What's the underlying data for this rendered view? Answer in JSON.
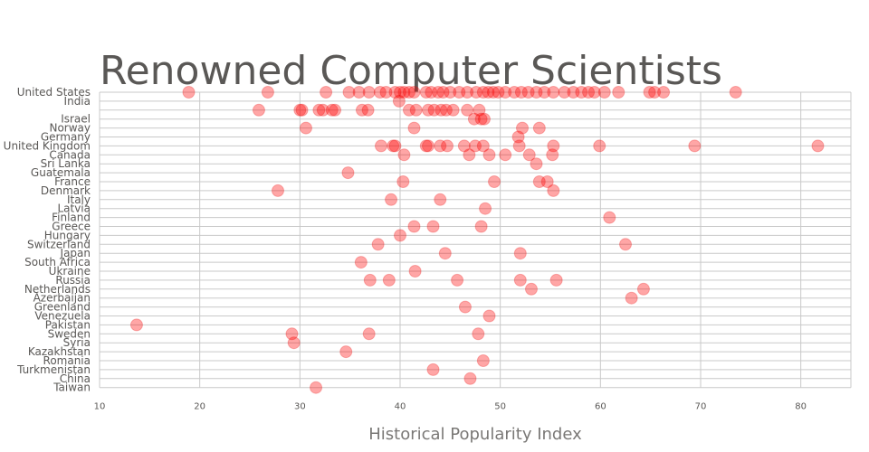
{
  "chart_data": {
    "type": "scatter",
    "title": "Renowned Computer Scientists",
    "xlabel": "Historical Popularity Index",
    "ylabel": "",
    "xlim": [
      10,
      85
    ],
    "xticks": [
      10,
      20,
      30,
      40,
      50,
      60,
      70,
      80
    ],
    "grid": true,
    "marker_color": "#ff0000",
    "categories": [
      "United States",
      "India",
      "",
      "Israel",
      "Norway",
      "Germany",
      "United Kingdom",
      "Canada",
      "Sri Lanka",
      "Guatemala",
      "France",
      "Denmark",
      "Italy",
      "Latvia",
      "Finland",
      "Greece",
      "Hungary",
      "Switzerland",
      "Japan",
      "South Africa",
      "Ukraine",
      "Russia",
      "Netherlands",
      "Azerbaijan",
      "Greenland",
      "Venezuela",
      "Pakistan",
      "Sweden",
      "Syria",
      "Kazakhstan",
      "Romania",
      "Turkmenistan",
      "China",
      "Taiwan"
    ],
    "points": {
      "United States": [
        18.9,
        26.8,
        32.6,
        34.9,
        35.9,
        36.9,
        38.0,
        38.6,
        39.5,
        40.0,
        40.4,
        40.9,
        41.4,
        42.6,
        43.1,
        43.8,
        44.3,
        45.0,
        45.9,
        46.7,
        47.6,
        48.3,
        48.8,
        49.3,
        49.8,
        50.5,
        51.4,
        52.1,
        52.8,
        53.6,
        54.4,
        55.3,
        56.4,
        57.3,
        58.1,
        58.8,
        59.4,
        60.4,
        61.8,
        64.9,
        65.4,
        66.3,
        73.5
      ],
      "India": [
        39.9
      ],
      "": [
        25.9,
        30.0,
        30.2,
        31.9,
        32.3,
        33.2,
        33.5,
        36.2,
        36.8,
        40.9,
        41.6,
        42.8,
        43.4,
        44.1,
        44.6,
        45.3,
        46.7,
        47.9
      ],
      "Israel": [
        47.4,
        48.1,
        48.4
      ],
      "Norway": [
        30.6,
        41.4,
        52.2,
        53.9
      ],
      "Germany": [
        51.8
      ],
      "United Kingdom": [
        38.1,
        39.3,
        39.5,
        42.6,
        42.8,
        44.0,
        44.7,
        46.4,
        47.5,
        48.3,
        51.9,
        55.3,
        59.9,
        69.4,
        81.7
      ],
      "Canada": [
        40.4,
        46.9,
        48.9,
        50.5,
        52.9,
        55.2
      ],
      "Sri Lanka": [
        53.6
      ],
      "Guatemala": [
        34.8
      ],
      "France": [
        40.3,
        49.4,
        53.9,
        54.7
      ],
      "Denmark": [
        27.8,
        55.3
      ],
      "Italy": [
        39.1,
        44.0
      ],
      "Latvia": [
        48.5
      ],
      "Finland": [
        60.9
      ],
      "Greece": [
        41.4,
        43.3,
        48.1
      ],
      "Hungary": [
        40.0
      ],
      "Switzerland": [
        37.8,
        62.5
      ],
      "Japan": [
        44.5,
        52.0
      ],
      "South Africa": [
        36.1
      ],
      "Ukraine": [
        41.5
      ],
      "Russia": [
        37.0,
        38.9,
        45.7,
        52.0,
        55.6
      ],
      "Netherlands": [
        53.1,
        64.3
      ],
      "Azerbaijan": [
        63.1
      ],
      "Greenland": [
        46.5
      ],
      "Venezuela": [
        48.9
      ],
      "Pakistan": [
        13.7
      ],
      "Sweden": [
        29.2,
        36.9,
        47.8
      ],
      "Syria": [
        29.4
      ],
      "Kazakhstan": [
        34.6
      ],
      "Romania": [
        48.3
      ],
      "Turkmenistan": [
        43.3
      ],
      "China": [
        47.0
      ],
      "Taiwan": [
        31.6
      ]
    }
  }
}
